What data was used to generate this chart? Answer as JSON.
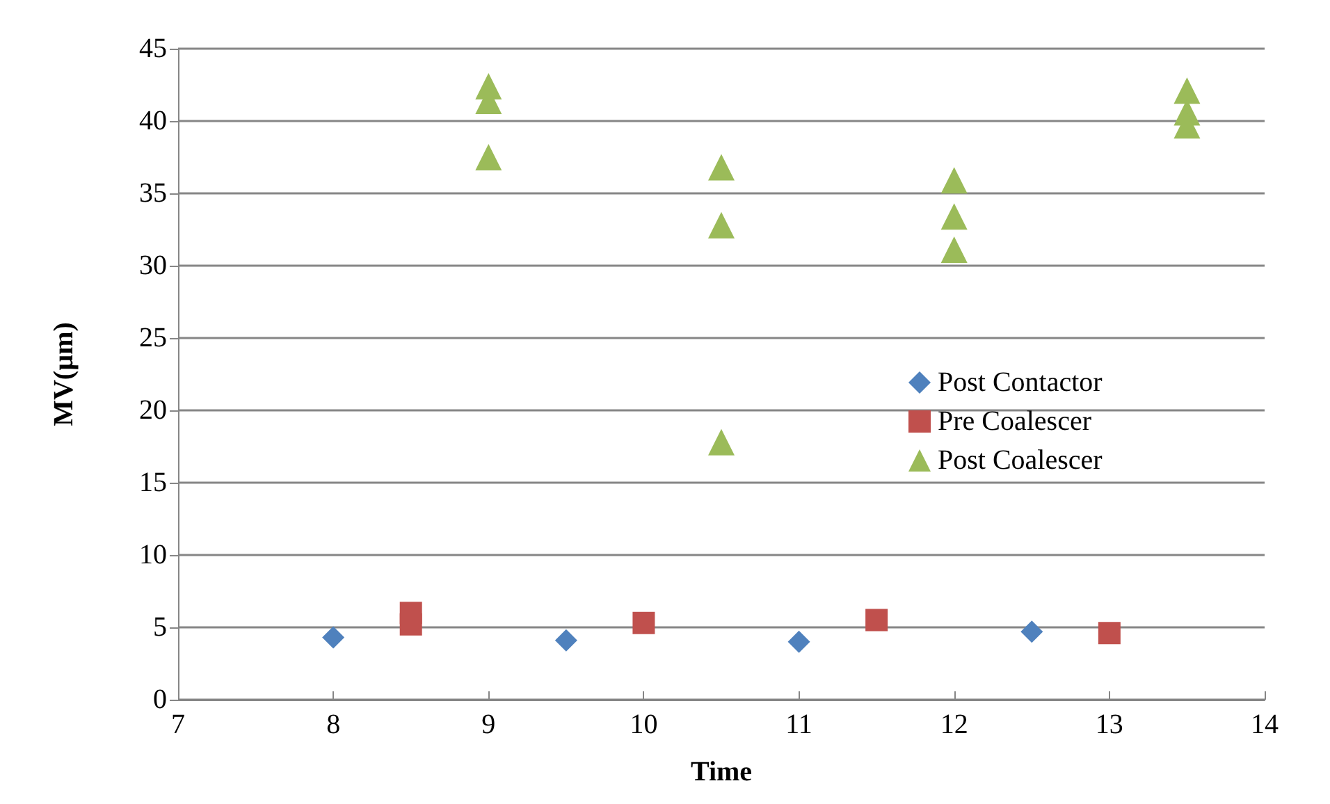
{
  "chart_data": {
    "type": "scatter",
    "xlabel": "Time",
    "ylabel": "MV(µm)",
    "xlim": [
      7,
      14
    ],
    "xticks": [
      7,
      8,
      9,
      10,
      11,
      12,
      13,
      14
    ],
    "ylim": [
      0,
      45
    ],
    "yticks": [
      0,
      5,
      10,
      15,
      20,
      25,
      30,
      35,
      40,
      45
    ],
    "grid": "y",
    "legend": "right",
    "series": [
      {
        "name": "Post Contactor",
        "color": "#4f81bd",
        "marker": "diamond",
        "x": [
          8,
          9.5,
          11,
          12.5
        ],
        "values": [
          4.3,
          4.1,
          4.0,
          4.7
        ]
      },
      {
        "name": "Pre Coalescer",
        "color": "#c0504d",
        "marker": "square",
        "x": [
          8.5,
          8.5,
          10,
          11.5,
          13
        ],
        "values": [
          6.0,
          5.2,
          5.3,
          5.5,
          4.6
        ]
      },
      {
        "name": "Post Coalescer",
        "color": "#9bbb59",
        "marker": "triangle",
        "x": [
          9,
          9,
          9,
          10.5,
          10.5,
          10.5,
          12,
          12,
          12,
          13.5,
          13.5,
          13.5
        ],
        "values": [
          42.4,
          41.4,
          37.5,
          36.8,
          32.8,
          17.8,
          35.9,
          33.4,
          31.1,
          42.1,
          40.6,
          39.7
        ]
      }
    ]
  }
}
